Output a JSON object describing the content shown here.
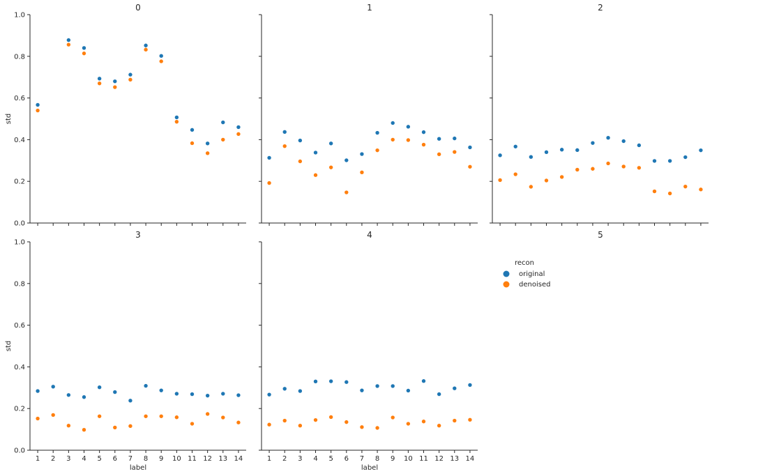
{
  "chart_data": {
    "type": "scatter",
    "layout": "facet-grid",
    "x_label": "label",
    "y_label": "std",
    "x_ticks": [
      1,
      2,
      3,
      4,
      5,
      6,
      7,
      8,
      9,
      10,
      11,
      12,
      13,
      14
    ],
    "y_ticks": [
      "0.0",
      "0.2",
      "0.4",
      "0.6",
      "0.8",
      "1.0"
    ],
    "ylim": [
      0,
      1.0
    ],
    "xlim": [
      0.5,
      14.5
    ],
    "legend": {
      "title": "recon",
      "placement": "right",
      "entries": [
        {
          "name": "original",
          "color": "#1f77b4"
        },
        {
          "name": "denoised",
          "color": "#ff7f0e"
        }
      ]
    },
    "panels": [
      {
        "title": "0",
        "series": [
          {
            "name": "original",
            "x": [
              1,
              3,
              4,
              5,
              6,
              7,
              8,
              9,
              10,
              11,
              12,
              13,
              14
            ],
            "values": [
              0.567,
              0.878,
              0.84,
              0.693,
              0.68,
              0.712,
              0.852,
              0.802,
              0.507,
              0.447,
              0.382,
              0.483,
              0.46
            ]
          },
          {
            "name": "denoised",
            "x": [
              1,
              3,
              4,
              5,
              6,
              7,
              8,
              9,
              10,
              11,
              12,
              13,
              14
            ],
            "values": [
              0.54,
              0.856,
              0.814,
              0.67,
              0.652,
              0.688,
              0.832,
              0.776,
              0.486,
              0.383,
              0.335,
              0.4,
              0.427
            ]
          }
        ]
      },
      {
        "title": "1",
        "series": [
          {
            "name": "original",
            "x": [
              1,
              2,
              3,
              4,
              5,
              6,
              7,
              8,
              9,
              10,
              11,
              12,
              13,
              14
            ],
            "values": [
              0.313,
              0.437,
              0.396,
              0.338,
              0.382,
              0.301,
              0.331,
              0.433,
              0.48,
              0.462,
              0.436,
              0.404,
              0.406,
              0.363
            ]
          },
          {
            "name": "denoised",
            "x": [
              1,
              2,
              3,
              4,
              5,
              6,
              7,
              8,
              9,
              10,
              11,
              12,
              13,
              14
            ],
            "values": [
              0.192,
              0.369,
              0.296,
              0.23,
              0.267,
              0.147,
              0.243,
              0.349,
              0.4,
              0.398,
              0.376,
              0.33,
              0.341,
              0.27
            ]
          }
        ]
      },
      {
        "title": "2",
        "series": [
          {
            "name": "original",
            "x": [
              1,
              2,
              3,
              4,
              5,
              6,
              7,
              8,
              9,
              10,
              11,
              12,
              13,
              14
            ],
            "values": [
              0.325,
              0.367,
              0.317,
              0.34,
              0.352,
              0.35,
              0.384,
              0.409,
              0.393,
              0.373,
              0.298,
              0.298,
              0.316,
              0.349
            ]
          },
          {
            "name": "denoised",
            "x": [
              1,
              2,
              3,
              4,
              5,
              6,
              7,
              8,
              9,
              10,
              11,
              12,
              13,
              14
            ],
            "values": [
              0.206,
              0.234,
              0.174,
              0.204,
              0.221,
              0.256,
              0.26,
              0.286,
              0.271,
              0.265,
              0.152,
              0.142,
              0.175,
              0.161
            ]
          }
        ]
      },
      {
        "title": "3",
        "series": [
          {
            "name": "original",
            "x": [
              1,
              2,
              3,
              4,
              5,
              6,
              7,
              8,
              9,
              10,
              11,
              12,
              13,
              14
            ],
            "values": [
              0.284,
              0.305,
              0.265,
              0.255,
              0.302,
              0.279,
              0.238,
              0.309,
              0.287,
              0.271,
              0.269,
              0.262,
              0.271,
              0.264
            ]
          },
          {
            "name": "denoised",
            "x": [
              1,
              2,
              3,
              4,
              5,
              6,
              7,
              8,
              9,
              10,
              11,
              12,
              13,
              14
            ],
            "values": [
              0.152,
              0.169,
              0.118,
              0.098,
              0.163,
              0.109,
              0.116,
              0.163,
              0.163,
              0.158,
              0.127,
              0.174,
              0.157,
              0.133
            ]
          }
        ]
      },
      {
        "title": "4",
        "series": [
          {
            "name": "original",
            "x": [
              1,
              2,
              3,
              4,
              5,
              6,
              7,
              8,
              9,
              10,
              11,
              12,
              13,
              14
            ],
            "values": [
              0.267,
              0.295,
              0.284,
              0.33,
              0.331,
              0.327,
              0.287,
              0.308,
              0.308,
              0.286,
              0.332,
              0.269,
              0.297,
              0.313
            ]
          },
          {
            "name": "denoised",
            "x": [
              1,
              2,
              3,
              4,
              5,
              6,
              7,
              8,
              9,
              10,
              11,
              12,
              13,
              14
            ],
            "values": [
              0.123,
              0.142,
              0.118,
              0.145,
              0.159,
              0.135,
              0.111,
              0.107,
              0.157,
              0.127,
              0.138,
              0.118,
              0.142,
              0.146
            ]
          }
        ]
      },
      {
        "title": "5",
        "series": []
      }
    ]
  }
}
